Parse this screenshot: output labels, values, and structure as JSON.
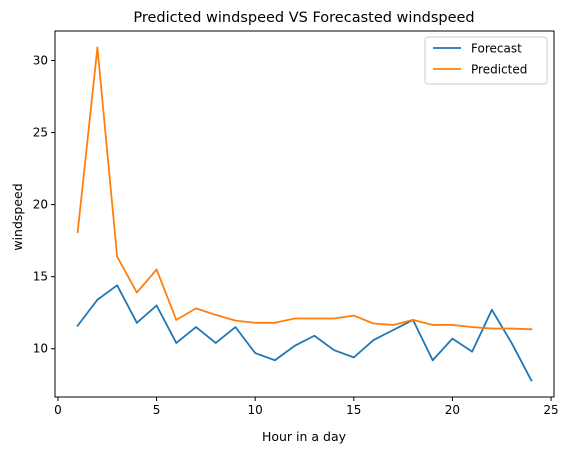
{
  "chart_data": {
    "type": "line",
    "title": "Predicted windspeed VS Forecasted windspeed",
    "xlabel": "Hour in a day",
    "ylabel": "windspeed",
    "xlim": [
      -0.15,
      25.15
    ],
    "ylim": [
      6.65,
      32.05
    ],
    "x_ticks": [
      0,
      5,
      10,
      15,
      20,
      25
    ],
    "y_ticks": [
      10,
      15,
      20,
      25,
      30
    ],
    "x": [
      1,
      2,
      3,
      4,
      5,
      6,
      7,
      8,
      9,
      10,
      11,
      12,
      13,
      14,
      15,
      16,
      17,
      18,
      19,
      20,
      21,
      22,
      23,
      24
    ],
    "series": [
      {
        "name": "Forecast",
        "color": "#1f77b4",
        "values": [
          11.6,
          13.4,
          14.4,
          11.8,
          13.0,
          10.4,
          11.5,
          10.4,
          11.5,
          9.7,
          9.2,
          10.2,
          10.9,
          9.9,
          9.4,
          10.6,
          11.3,
          12.0,
          9.2,
          10.7,
          9.8,
          12.7,
          10.4,
          7.8
        ]
      },
      {
        "name": "Predicted",
        "color": "#ff7f0e",
        "values": [
          18.1,
          30.9,
          16.4,
          13.9,
          15.5,
          12.0,
          12.8,
          12.35,
          11.95,
          11.8,
          11.8,
          12.1,
          12.1,
          12.1,
          12.3,
          11.75,
          11.65,
          12.0,
          11.65,
          11.65,
          11.5,
          11.4,
          11.4,
          11.35
        ]
      }
    ],
    "grid": false,
    "legend_position": "upper right"
  }
}
